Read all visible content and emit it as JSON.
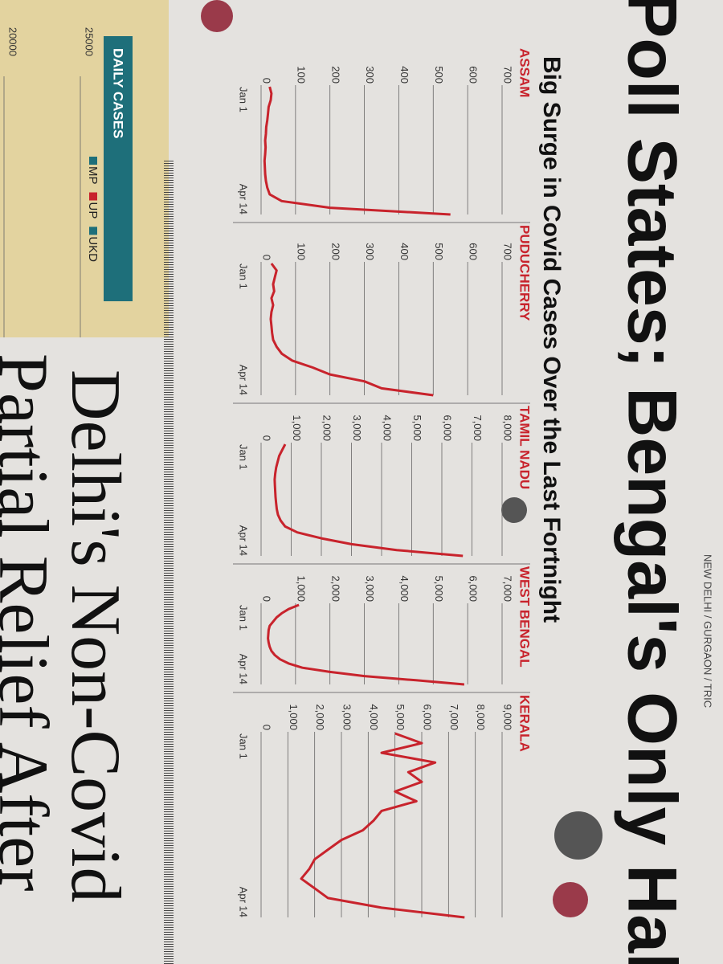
{
  "dateline": "NEW DELHI / GURGAON / TRIC",
  "headlines": [
    "Poll States; Bengal's Only Hal",
    "Delhi's Non-Covid",
    "Partial Relief After"
  ],
  "panel_title": "Big Surge in Covid Cases Over the Last Fortnight",
  "chart_data": [
    {
      "type": "line",
      "title": "ASSAM",
      "color": "#c8232c",
      "categories": [
        "Jan 1",
        null,
        null,
        null,
        null,
        null,
        null,
        null,
        null,
        null,
        null,
        null,
        null,
        null,
        null,
        null,
        null,
        null,
        null,
        "Apr 14"
      ],
      "values": [
        25,
        30,
        28,
        22,
        20,
        18,
        15,
        14,
        12,
        13,
        12,
        10,
        11,
        12,
        14,
        18,
        25,
        60,
        200,
        550
      ],
      "ylim": [
        0,
        700
      ],
      "yticks": [
        0,
        100,
        200,
        300,
        400,
        500,
        600,
        700
      ],
      "grid": true
    },
    {
      "type": "line",
      "title": "PUDUCHERRY",
      "color": "#c8232c",
      "categories": [
        "Jan 1",
        null,
        null,
        null,
        null,
        null,
        null,
        null,
        null,
        null,
        null,
        null,
        null,
        null,
        null,
        null,
        null,
        null,
        null,
        "Apr 14"
      ],
      "values": [
        30,
        45,
        40,
        35,
        38,
        30,
        35,
        30,
        28,
        30,
        32,
        35,
        45,
        60,
        90,
        150,
        200,
        300,
        350,
        500
      ],
      "ylim": [
        0,
        700
      ],
      "yticks": [
        0,
        100,
        200,
        300,
        400,
        500,
        600,
        700
      ],
      "grid": true
    },
    {
      "type": "line",
      "title": "TAMIL NADU",
      "color": "#c8232c",
      "categories": [
        "Jan 1",
        null,
        null,
        null,
        null,
        null,
        null,
        null,
        null,
        null,
        null,
        null,
        null,
        null,
        null,
        null,
        null,
        null,
        null,
        "Apr 14"
      ],
      "values": [
        800,
        700,
        600,
        550,
        500,
        470,
        450,
        460,
        470,
        480,
        500,
        520,
        560,
        650,
        800,
        1200,
        2000,
        3000,
        4500,
        6700
      ],
      "ylim": [
        0,
        8000
      ],
      "yticks": [
        0,
        {
          "value": 1000,
          "label": "1,000"
        },
        {
          "value": 2000,
          "label": "2,000"
        },
        {
          "value": 3000,
          "label": "3,000"
        },
        {
          "value": 4000,
          "label": "4,000"
        },
        {
          "value": 5000,
          "label": "5,000"
        },
        {
          "value": 6000,
          "label": "6,000"
        },
        {
          "value": 7000,
          "label": "7,000"
        },
        {
          "value": 8000,
          "label": "8,000"
        }
      ],
      "grid": true
    },
    {
      "type": "line",
      "title": "WEST BENGAL",
      "color": "#c8232c",
      "categories": [
        "Jan 1",
        null,
        null,
        null,
        null,
        null,
        null,
        null,
        null,
        null,
        null,
        null,
        null,
        null,
        null,
        null,
        null,
        null,
        null,
        "Apr 14"
      ],
      "values": [
        1100,
        800,
        600,
        450,
        350,
        250,
        220,
        210,
        200,
        220,
        250,
        300,
        400,
        550,
        800,
        1200,
        2000,
        3000,
        4500,
        5900
      ],
      "ylim": [
        0,
        7000
      ],
      "yticks": [
        0,
        {
          "value": 1000,
          "label": "1,000"
        },
        {
          "value": 2000,
          "label": "2,000"
        },
        {
          "value": 3000,
          "label": "3,000"
        },
        {
          "value": 4000,
          "label": "4,000"
        },
        {
          "value": 5000,
          "label": "5,000"
        },
        {
          "value": 6000,
          "label": "6,000"
        },
        {
          "value": 7000,
          "label": "7,000"
        }
      ],
      "grid": true
    },
    {
      "type": "line",
      "title": "KERALA",
      "color": "#c8232c",
      "categories": [
        "Jan 1",
        null,
        null,
        null,
        null,
        null,
        null,
        null,
        null,
        null,
        null,
        null,
        null,
        null,
        null,
        null,
        null,
        null,
        null,
        "Apr 14"
      ],
      "values": [
        5000,
        6000,
        4500,
        6500,
        5500,
        6000,
        5000,
        5800,
        4500,
        4200,
        3800,
        3000,
        2500,
        2000,
        1800,
        1500,
        2000,
        2500,
        4500,
        7600
      ],
      "ylim": [
        0,
        9000
      ],
      "yticks": [
        0,
        {
          "value": 1000,
          "label": "1,000"
        },
        {
          "value": 2000,
          "label": "2,000"
        },
        {
          "value": 3000,
          "label": "3,000"
        },
        {
          "value": 4000,
          "label": "4,000"
        },
        {
          "value": 5000,
          "label": "5,000"
        },
        {
          "value": 6000,
          "label": "6,000"
        },
        {
          "value": 7000,
          "label": "7,000"
        },
        {
          "value": 8000,
          "label": "8,000"
        },
        {
          "value": 9000,
          "label": "9,000"
        }
      ],
      "grid": true
    },
    {
      "type": "legend-only",
      "title": "DAILY CASES",
      "series": [
        {
          "name": "MP",
          "color": "#1e6f7a"
        },
        {
          "name": "UP",
          "color": "#c8232c"
        },
        {
          "name": "UKD",
          "color": "#1e6f7a"
        }
      ],
      "ylim": [
        20000,
        25000
      ],
      "yticks": [
        20000,
        25000
      ],
      "grid": true
    }
  ]
}
